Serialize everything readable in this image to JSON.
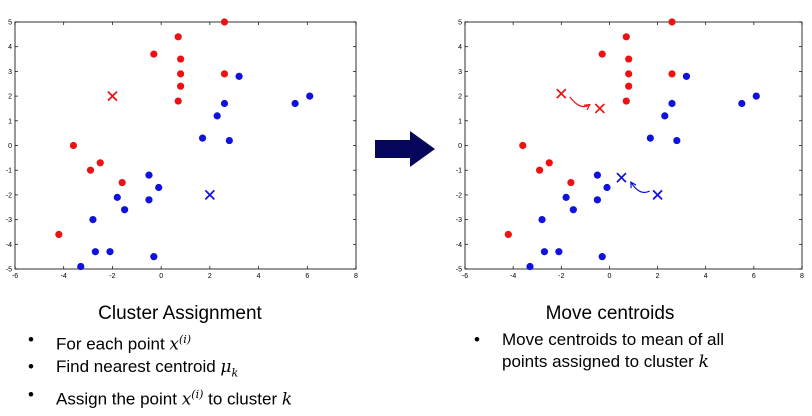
{
  "colors": {
    "red": "#ee1111",
    "blue": "#1111dd",
    "arrow": "#06065a"
  },
  "chart_data": [
    {
      "type": "scatter",
      "xlim": [
        -6,
        8
      ],
      "ylim": [
        -5,
        5
      ],
      "xticks": [
        -6,
        -4,
        -2,
        0,
        2,
        4,
        6,
        8
      ],
      "yticks": [
        5,
        4,
        3,
        2,
        1,
        0,
        -1,
        -2,
        -3,
        -4,
        -5
      ],
      "series": [
        {
          "color": "red",
          "points": [
            [
              2.6,
              5
            ],
            [
              0.7,
              4.4
            ],
            [
              -0.3,
              3.7
            ],
            [
              0.8,
              3.5
            ],
            [
              0.8,
              2.9
            ],
            [
              2.6,
              2.9
            ],
            [
              0.8,
              2.4
            ],
            [
              0.7,
              1.8
            ],
            [
              -3.6,
              0
            ],
            [
              -2.5,
              -0.7
            ],
            [
              -2.9,
              -1
            ],
            [
              -1.6,
              -1.5
            ],
            [
              -4.2,
              -3.6
            ]
          ]
        },
        {
          "color": "blue",
          "points": [
            [
              3.2,
              2.8
            ],
            [
              2.6,
              1.7
            ],
            [
              2.3,
              1.2
            ],
            [
              6.1,
              2
            ],
            [
              5.5,
              1.7
            ],
            [
              1.7,
              0.3
            ],
            [
              2.8,
              0.2
            ],
            [
              -0.5,
              -1.2
            ],
            [
              -0.1,
              -1.7
            ],
            [
              -1.8,
              -2.1
            ],
            [
              -0.5,
              -2.2
            ],
            [
              -1.5,
              -2.6
            ],
            [
              -2.8,
              -3
            ],
            [
              -2.7,
              -4.3
            ],
            [
              -2.1,
              -4.3
            ],
            [
              -0.3,
              -4.5
            ],
            [
              -3.3,
              -4.9
            ]
          ]
        }
      ],
      "centroids": [
        {
          "color": "red",
          "x": -2,
          "y": 2
        },
        {
          "color": "blue",
          "x": 2,
          "y": -2
        }
      ]
    },
    {
      "type": "scatter",
      "xlim": [
        -6,
        8
      ],
      "ylim": [
        -5,
        5
      ],
      "xticks": [
        -6,
        -4,
        -2,
        0,
        2,
        4,
        6,
        8
      ],
      "yticks": [
        5,
        4,
        3,
        2,
        1,
        0,
        -1,
        -2,
        -3,
        -4,
        -5
      ],
      "series": [
        {
          "color": "red",
          "points": [
            [
              2.6,
              5
            ],
            [
              0.7,
              4.4
            ],
            [
              -0.3,
              3.7
            ],
            [
              0.8,
              3.5
            ],
            [
              0.8,
              2.9
            ],
            [
              2.6,
              2.9
            ],
            [
              0.8,
              2.4
            ],
            [
              0.7,
              1.8
            ],
            [
              -3.6,
              0
            ],
            [
              -2.5,
              -0.7
            ],
            [
              -2.9,
              -1
            ],
            [
              -1.6,
              -1.5
            ],
            [
              -4.2,
              -3.6
            ]
          ]
        },
        {
          "color": "blue",
          "points": [
            [
              3.2,
              2.8
            ],
            [
              2.6,
              1.7
            ],
            [
              2.3,
              1.2
            ],
            [
              6.1,
              2
            ],
            [
              5.5,
              1.7
            ],
            [
              1.7,
              0.3
            ],
            [
              2.8,
              0.2
            ],
            [
              -0.5,
              -1.2
            ],
            [
              -0.1,
              -1.7
            ],
            [
              -1.8,
              -2.1
            ],
            [
              -0.5,
              -2.2
            ],
            [
              -1.5,
              -2.6
            ],
            [
              -2.8,
              -3
            ],
            [
              -2.7,
              -4.3
            ],
            [
              -2.1,
              -4.3
            ],
            [
              -0.3,
              -4.5
            ],
            [
              -3.3,
              -4.9
            ]
          ]
        }
      ],
      "centroids": [
        {
          "color": "red",
          "x": -2,
          "y": 2.1
        },
        {
          "color": "red",
          "x": -0.4,
          "y": 1.5
        },
        {
          "color": "blue",
          "x": 2,
          "y": -2
        },
        {
          "color": "blue",
          "x": 0.5,
          "y": -1.3
        }
      ],
      "moves": [
        {
          "color": "red",
          "from": [
            -2,
            2.1
          ],
          "to": [
            -0.4,
            1.5
          ]
        },
        {
          "color": "blue",
          "from": [
            2,
            -2
          ],
          "to": [
            0.5,
            -1.3
          ]
        }
      ]
    }
  ],
  "left": {
    "title": "Cluster Assignment",
    "bullet1": {
      "text": "For each point ",
      "sym": "x",
      "sup": "(i)"
    },
    "bullet2": {
      "text": "Find nearest centroid ",
      "sym": "μ",
      "sub": "k"
    },
    "bullet3": {
      "pre": "Assign the point ",
      "sym": "x",
      "sup": "(i)",
      "post": " to cluster ",
      "k": "k"
    }
  },
  "right": {
    "title": "Move centroids",
    "bullet1_line1": "Move centroids to mean of all",
    "bullet1_line2": "points assigned to cluster ",
    "k": "k"
  }
}
